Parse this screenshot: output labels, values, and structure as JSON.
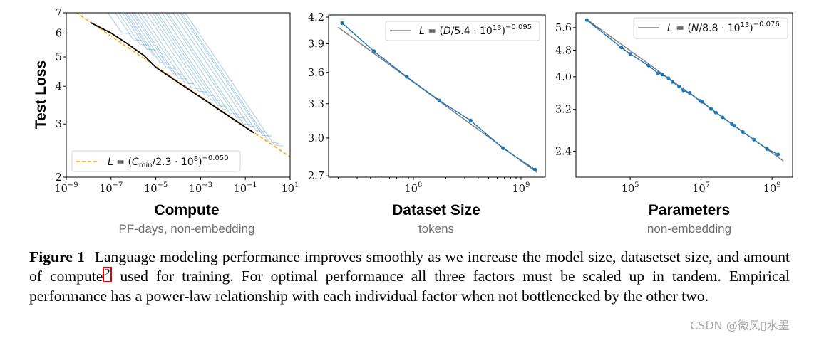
{
  "chart_data": [
    {
      "type": "line",
      "xscale": "log",
      "yscale": "log",
      "xlim": [
        1e-09,
        10
      ],
      "ylim": [
        2,
        7
      ],
      "ylabel": "Test Loss",
      "xlabel": "Compute",
      "xsublabel": "PF-days, non-embedding",
      "x_ticks": [
        {
          "value": 1e-09,
          "base": "10",
          "exp": "−9"
        },
        {
          "value": 1e-07,
          "base": "10",
          "exp": "−7"
        },
        {
          "value": 1e-05,
          "base": "10",
          "exp": "−5"
        },
        {
          "value": 0.001,
          "base": "10",
          "exp": "−3"
        },
        {
          "value": 0.1,
          "base": "10",
          "exp": "−1"
        },
        {
          "value": 10,
          "base": "10",
          "exp": "1"
        }
      ],
      "y_ticks": [
        {
          "value": 2,
          "label": "2"
        },
        {
          "value": 3,
          "label": "3"
        },
        {
          "value": 4,
          "label": "4"
        },
        {
          "value": 5,
          "label": "5"
        },
        {
          "value": 6,
          "label": "6"
        },
        {
          "value": 7,
          "label": "7"
        }
      ],
      "legend": {
        "position": "bottom-left",
        "lhs": "L",
        "eq": " = (",
        "var": "C",
        "sub": "min",
        "rest": "/2.3 · 10",
        "exp1": "8",
        "close": ")",
        "exp2": "−0.050"
      },
      "fit": {
        "coef": 230000000.0,
        "exponent": -0.05,
        "range": [
          1e-09,
          10
        ],
        "color": "#ffa500",
        "style": "dashed"
      },
      "frontier": {
        "color": "#000000",
        "points": [
          [
            1.2e-08,
            6.5
          ],
          [
            1e-07,
            6.0
          ],
          [
            5e-07,
            5.55
          ],
          [
            3e-06,
            5.05
          ],
          [
            1e-05,
            4.62
          ],
          [
            0.0001,
            4.12
          ],
          [
            0.001,
            3.68
          ],
          [
            0.01,
            3.28
          ],
          [
            0.1,
            2.93
          ],
          [
            0.25,
            2.8
          ]
        ]
      },
      "learning_curves": {
        "color": "#1f77b4",
        "end_points": [
          [
            3e-07,
            6.0
          ],
          [
            1e-06,
            5.7
          ],
          [
            2e-06,
            5.5
          ],
          [
            4e-06,
            5.3
          ],
          [
            8e-06,
            5.05
          ],
          [
            1.5e-05,
            4.8
          ],
          [
            3e-05,
            4.6
          ],
          [
            6e-05,
            4.4
          ],
          [
            0.0001,
            4.25
          ],
          [
            0.0002,
            4.1
          ],
          [
            0.0004,
            3.95
          ],
          [
            0.0008,
            3.85
          ],
          [
            0.0015,
            3.75
          ],
          [
            0.003,
            3.6
          ],
          [
            0.006,
            3.45
          ],
          [
            0.01,
            3.35
          ],
          [
            0.02,
            3.25
          ],
          [
            0.04,
            3.15
          ],
          [
            0.08,
            3.0
          ],
          [
            0.15,
            2.95
          ],
          [
            0.3,
            2.85
          ],
          [
            0.6,
            2.75
          ],
          [
            1.2,
            2.6
          ],
          [
            2,
            2.55
          ]
        ]
      }
    },
    {
      "type": "line",
      "xscale": "log",
      "yscale": "log",
      "xlim": [
        16300000.0,
        1680000000.0
      ],
      "ylim": [
        2.69,
        4.225
      ],
      "xlabel": "Dataset Size",
      "xsublabel": "tokens",
      "x_ticks": [
        {
          "value": 100000000.0,
          "base": "10",
          "exp": "8"
        },
        {
          "value": 1000000000.0,
          "base": "10",
          "exp": "9"
        }
      ],
      "y_ticks": [
        {
          "value": 4.2,
          "label": "4.2"
        },
        {
          "value": 3.9,
          "label": "3.9"
        },
        {
          "value": 3.6,
          "label": "3.6"
        },
        {
          "value": 3.3,
          "label": "3.3"
        },
        {
          "value": 3.0,
          "label": "3.0"
        },
        {
          "value": 2.7,
          "label": "2.7"
        }
      ],
      "legend": {
        "position": "top-right",
        "lhs": "L",
        "eq": " = (",
        "var": "D",
        "sub": "",
        "rest": "/5.4 · 10",
        "exp1": "13",
        "close": ")",
        "exp2": "−0.095"
      },
      "fit": {
        "coef": 54000000000000.0,
        "exponent": -0.095,
        "range": [
          20000000.0,
          1400000000.0
        ],
        "color": "#808080",
        "style": "solid"
      },
      "series": {
        "color": "#1f77b4",
        "x": [
          21800000.0,
          43000000.0,
          87000000.0,
          174000000.0,
          340000000.0,
          680000000.0,
          1350000000.0
        ],
        "y": [
          4.13,
          3.82,
          3.556,
          3.33,
          3.15,
          2.916,
          2.748
        ]
      }
    },
    {
      "type": "line",
      "xscale": "log",
      "yscale": "log",
      "xlim": [
        2950.0,
        3800000000.0
      ],
      "ylim": [
        2.01,
        6.2
      ],
      "xlabel": "Parameters",
      "xsublabel": "non-embedding",
      "x_ticks": [
        {
          "value": 100000.0,
          "base": "10",
          "exp": "5"
        },
        {
          "value": 10000000.0,
          "base": "10",
          "exp": "7"
        },
        {
          "value": 1000000000.0,
          "base": "10",
          "exp": "9"
        }
      ],
      "y_ticks": [
        {
          "value": 5.6,
          "label": "5.6"
        },
        {
          "value": 4.8,
          "label": "4.8"
        },
        {
          "value": 4.0,
          "label": "4.0"
        },
        {
          "value": 3.2,
          "label": "3.2"
        },
        {
          "value": 2.4,
          "label": "2.4"
        }
      ],
      "legend": {
        "position": "top-right",
        "lhs": "L",
        "eq": " = (",
        "var": "N",
        "sub": "",
        "rest": "/8.8 · 10",
        "exp1": "13",
        "close": ")",
        "exp2": "−0.076"
      },
      "fit": {
        "coef": 88000000000000.0,
        "exponent": -0.076,
        "range": [
          6000.0,
          2100000000.0
        ],
        "color": "#808080",
        "style": "solid"
      },
      "series": {
        "color": "#1f77b4",
        "x": [
          6000.0,
          56000.0,
          100000.0,
          330000.0,
          600000.0,
          810000.0,
          1200000.0,
          1550000.0,
          2400000.0,
          3200000.0,
          4800000.0,
          9300000.0,
          10700000.0,
          19000000.0,
          26000000.0,
          40000000.0,
          74000000.0,
          87000000.0,
          150000000.0,
          310000000.0,
          720000000.0,
          1480000000.0
        ],
        "y": [
          5.9,
          4.89,
          4.68,
          4.32,
          4.1,
          4.06,
          3.96,
          3.86,
          3.74,
          3.64,
          3.58,
          3.39,
          3.37,
          3.21,
          3.13,
          3.03,
          2.89,
          2.86,
          2.74,
          2.6,
          2.44,
          2.35
        ]
      }
    }
  ],
  "caption": {
    "label": "Figure 1",
    "text_before": "Language modeling performance improves smoothly as we increase the model size, datasetset size, and amount of compute",
    "footnote_mark": "2",
    "text_after": " used for training. For optimal performance all three factors must be scaled up in tandem. Empirical performance has a power-law relationship with each individual factor when not bottlenecked by the other two.",
    "highlight_color": "#e00000"
  },
  "watermark": "CSDN @微风▯水墨"
}
